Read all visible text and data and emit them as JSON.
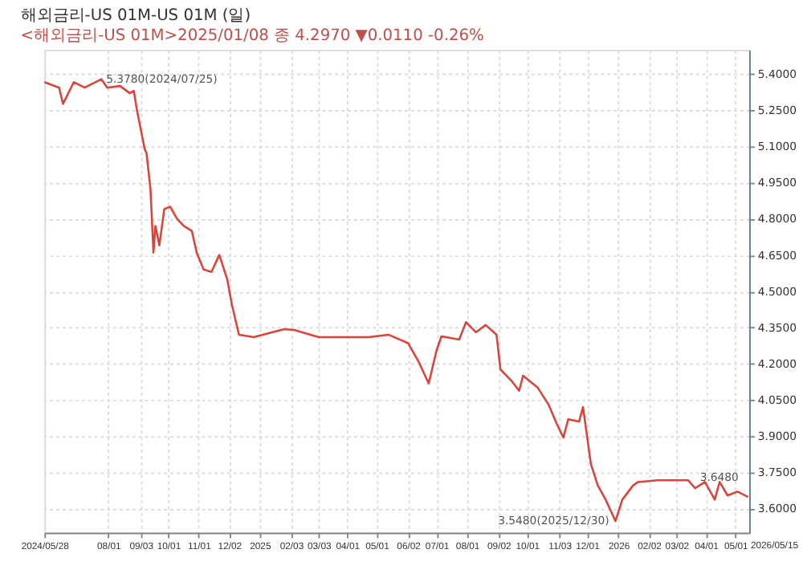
{
  "chart_data": {
    "type": "line",
    "title": "해외금리-US 01M-US 01M (일)",
    "subtitle": "<해외금리-US 01M>2025/01/08 종 4.2970  ▼0.0110  -0.26%",
    "x": [
      "2024-05-28",
      "2024-06-12",
      "2024-06-16",
      "2024-06-27",
      "2024-07-08",
      "2024-07-25",
      "2024-07-31",
      "2024-08-13",
      "2024-08-23",
      "2024-08-27",
      "2024-08-30",
      "2024-09-07",
      "2024-09-09",
      "2024-09-13",
      "2024-09-16",
      "2024-09-18",
      "2024-09-22",
      "2024-09-27",
      "2024-10-03",
      "2024-10-10",
      "2024-10-17",
      "2024-10-25",
      "2024-10-30",
      "2024-11-06",
      "2024-11-14",
      "2024-11-22",
      "2024-11-30",
      "2024-12-05",
      "2024-12-12",
      "2024-12-27",
      "2025-01-27",
      "2025-02-06",
      "2025-03-03",
      "2025-04-23",
      "2025-05-13",
      "2025-06-02",
      "2025-06-13",
      "2025-06-23",
      "2025-07-01",
      "2025-07-06",
      "2025-07-24",
      "2025-07-31",
      "2025-08-10",
      "2025-08-20",
      "2025-08-31",
      "2025-09-04",
      "2025-09-15",
      "2025-09-23",
      "2025-09-27",
      "2025-10-12",
      "2025-10-23",
      "2025-10-31",
      "2025-11-07",
      "2025-11-12",
      "2025-11-23",
      "2025-11-27",
      "2025-12-05",
      "2025-12-12",
      "2025-12-20",
      "2025-12-30",
      "2026-01-06",
      "2026-01-17",
      "2026-01-22",
      "2026-02-11",
      "2026-03-14",
      "2026-03-21",
      "2026-03-31",
      "2026-04-10",
      "2026-04-15",
      "2026-04-23",
      "2026-05-03",
      "2026-05-14"
    ],
    "series": [
      {
        "color": "#d9453a",
        "values": [
          5.366,
          5.343,
          5.276,
          5.366,
          5.343,
          5.378,
          5.343,
          5.35,
          5.32,
          5.33,
          5.255,
          5.09,
          5.07,
          4.92,
          4.66,
          4.77,
          4.69,
          4.84,
          4.85,
          4.8,
          4.77,
          4.75,
          4.66,
          4.59,
          4.58,
          4.65,
          4.55,
          4.44,
          4.32,
          4.31,
          4.343,
          4.34,
          4.31,
          4.31,
          4.32,
          4.285,
          4.206,
          4.118,
          4.255,
          4.313,
          4.3,
          4.372,
          4.33,
          4.36,
          4.32,
          4.176,
          4.13,
          4.088,
          4.15,
          4.1,
          4.03,
          3.953,
          3.894,
          3.97,
          3.96,
          4.02,
          3.784,
          3.696,
          3.637,
          3.548,
          3.637,
          3.696,
          3.71,
          3.717,
          3.717,
          3.684,
          3.71,
          3.637,
          3.71,
          3.654,
          3.67,
          3.648
        ]
      }
    ],
    "xlim": [
      "2024-05-28",
      "2026-05-15"
    ],
    "xticks": [
      {
        "value": "2024-05-28",
        "label": "2024/05/28"
      },
      {
        "value": "2024-08-01",
        "label": "08/01"
      },
      {
        "value": "2024-09-03",
        "label": "09/03"
      },
      {
        "value": "2024-10-01",
        "label": "10/01"
      },
      {
        "value": "2024-11-01",
        "label": "11/01"
      },
      {
        "value": "2024-12-02",
        "label": "12/02"
      },
      {
        "value": "2025-01-02",
        "label": "2025"
      },
      {
        "value": "2025-02-03",
        "label": "02/03"
      },
      {
        "value": "2025-03-03",
        "label": "03/03"
      },
      {
        "value": "2025-04-01",
        "label": "04/01"
      },
      {
        "value": "2025-05-01",
        "label": "05/01"
      },
      {
        "value": "2025-06-02",
        "label": "06/02"
      },
      {
        "value": "2025-07-01",
        "label": "07/01"
      },
      {
        "value": "2025-08-01",
        "label": "08/01"
      },
      {
        "value": "2025-09-02",
        "label": "09/02"
      },
      {
        "value": "2025-10-01",
        "label": "10/01"
      },
      {
        "value": "2025-11-03",
        "label": "11/03"
      },
      {
        "value": "2025-12-01",
        "label": "12/01"
      },
      {
        "value": "2026-01-02",
        "label": "2026"
      },
      {
        "value": "2026-02-02",
        "label": "02/02"
      },
      {
        "value": "2026-03-02",
        "label": "03/02"
      },
      {
        "value": "2026-04-01",
        "label": "04/01"
      },
      {
        "value": "2026-05-01",
        "label": "05/01"
      }
    ],
    "ylim": [
      3.5,
      5.5
    ],
    "yticks": [
      {
        "value": 3.6,
        "label": "3.6000"
      },
      {
        "value": 3.75,
        "label": "3.7500"
      },
      {
        "value": 3.9,
        "label": "3.9000"
      },
      {
        "value": 4.05,
        "label": "4.0500"
      },
      {
        "value": 4.2,
        "label": "4.2000"
      },
      {
        "value": 4.35,
        "label": "4.3500"
      },
      {
        "value": 4.5,
        "label": "4.5000"
      },
      {
        "value": 4.65,
        "label": "4.6500"
      },
      {
        "value": 4.8,
        "label": "4.8000"
      },
      {
        "value": 4.95,
        "label": "4.9500"
      },
      {
        "value": 5.1,
        "label": "5.1000"
      },
      {
        "value": 5.25,
        "label": "5.2500"
      },
      {
        "value": 5.4,
        "label": "5.4000"
      }
    ],
    "annotations": [
      "2026/05/15",
      {
        "text": "5.3780(2024/07/25)",
        "x": "2024-07-25",
        "y": 5.378
      },
      {
        "text": "3.5480(2025/12/30)",
        "x": "2025-12-30",
        "y": 3.548
      },
      {
        "text": "3.6480",
        "x": "2026-05-14",
        "y": 3.648
      }
    ],
    "grid": true,
    "line_style": "solid",
    "marker": "none",
    "legend": false
  }
}
